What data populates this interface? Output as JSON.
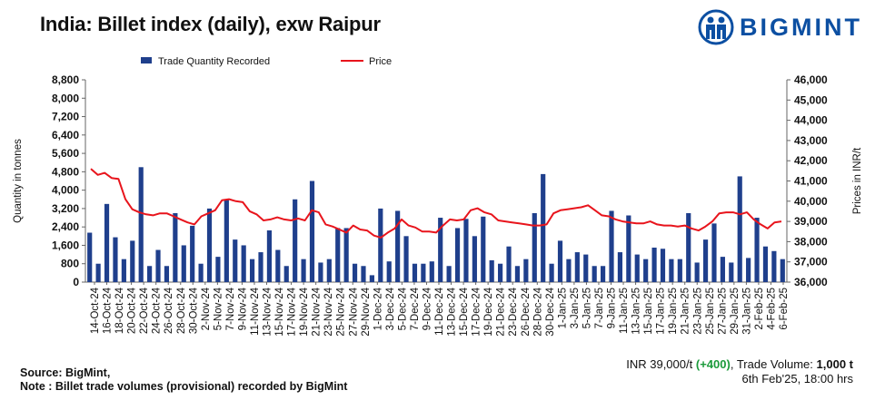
{
  "header": {
    "title": "India: Billet index (daily), exw Raipur",
    "logo_text": "BIGMINT"
  },
  "chart_data": {
    "type": "bar+line",
    "title": "India: Billet index (daily), exw Raipur",
    "ylabel_left": "Quantity in tonnes",
    "ylabel_right": "Prices in INR/t",
    "ylim_left": [
      0,
      8800
    ],
    "ylim_right": [
      36000,
      46000
    ],
    "left_ticks": [
      "0",
      "800",
      "1,600",
      "2,400",
      "3,200",
      "4,000",
      "4,800",
      "5,600",
      "6,400",
      "7,200",
      "8,000",
      "8,800"
    ],
    "right_ticks": [
      "36,000",
      "37,000",
      "38,000",
      "39,000",
      "40,000",
      "41,000",
      "42,000",
      "43,000",
      "44,000",
      "45,000",
      "46,000"
    ],
    "grid": false,
    "legend_position": "top",
    "x_tick_labels": [
      "14-Oct-24",
      "16-Oct-24",
      "18-Oct-24",
      "20-Oct-24",
      "22-Oct-24",
      "24-Oct-24",
      "26-Oct-24",
      "28-Oct-24",
      "30-Oct-24",
      "2-Nov-24",
      "5-Nov-24",
      "7-Nov-24",
      "9-Nov-24",
      "11-Nov-24",
      "13-Nov-24",
      "15-Nov-24",
      "17-Nov-24",
      "19-Nov-24",
      "21-Nov-24",
      "23-Nov-24",
      "25-Nov-24",
      "27-Nov-24",
      "29-Nov-24",
      "1-Dec-24",
      "3-Dec-24",
      "5-Dec-24",
      "7-Dec-24",
      "9-Dec-24",
      "11-Dec-24",
      "13-Dec-24",
      "15-Dec-24",
      "17-Dec-24",
      "19-Dec-24",
      "21-Dec-24",
      "23-Dec-24",
      "26-Dec-24",
      "28-Dec-24",
      "30-Dec-24",
      "1-Jan-25",
      "3-Jan-25",
      "5-Jan-25",
      "7-Jan-25",
      "9-Jan-25",
      "11-Jan-25",
      "13-Jan-25",
      "15-Jan-25",
      "17-Jan-25",
      "19-Jan-25",
      "21-Jan-25",
      "23-Jan-25",
      "25-Jan-25",
      "27-Jan-25",
      "29-Jan-25",
      "31-Jan-25",
      "2-Feb-25",
      "4-Feb-25",
      "6-Feb-25"
    ],
    "series": [
      {
        "name": "Trade Quantity Recorded",
        "kind": "bar",
        "axis": "left",
        "color": "#1f3f8c",
        "values": [
          2150,
          800,
          3400,
          1950,
          1000,
          1800,
          5000,
          700,
          1400,
          700,
          3000,
          1600,
          2450,
          800,
          3200,
          1100,
          3600,
          1850,
          1600,
          1000,
          1300,
          2250,
          1400,
          700,
          3600,
          1000,
          4400,
          850,
          1000,
          2350,
          2350,
          800,
          700,
          300,
          3200,
          900,
          3100,
          2000,
          800,
          800,
          900,
          2800,
          700,
          2350,
          2750,
          2000,
          2850,
          950,
          800,
          1550,
          700,
          1000,
          3000,
          4700,
          800,
          1800,
          1000,
          1300,
          1200,
          700,
          700,
          3100,
          1300,
          2900,
          1200,
          1000,
          1500,
          1450,
          1000,
          1000,
          3000,
          850,
          1850,
          2550,
          1100,
          850,
          4600,
          1050,
          2800,
          1550,
          1350,
          1000
        ]
      },
      {
        "name": "Price",
        "kind": "line",
        "axis": "right",
        "color": "#e8141c",
        "values": [
          41600,
          41300,
          41400,
          41150,
          41100,
          40100,
          39600,
          39450,
          39350,
          39300,
          39400,
          39400,
          39250,
          39100,
          38950,
          38850,
          39250,
          39400,
          39550,
          40050,
          40100,
          40000,
          39950,
          39500,
          39350,
          39050,
          39100,
          39200,
          39100,
          39050,
          39150,
          39050,
          39550,
          39450,
          38850,
          38750,
          38600,
          38450,
          38800,
          38600,
          38550,
          38300,
          38200,
          38450,
          38650,
          39100,
          38800,
          38700,
          38500,
          38500,
          38450,
          38800,
          39100,
          39050,
          39100,
          39550,
          39650,
          39450,
          39350,
          39050,
          39000,
          38950,
          38900,
          38850,
          38800,
          38800,
          38850,
          39400,
          39550,
          39600,
          39650,
          39700,
          39800,
          39550,
          39300,
          39250,
          39100,
          39000,
          38950,
          38900,
          38900,
          39000,
          38850,
          38800,
          38800,
          38750,
          38800,
          38650,
          38550,
          38750,
          39000,
          39400,
          39450,
          39450,
          39350,
          39450,
          39100,
          38850,
          38650,
          38950,
          39000
        ]
      }
    ]
  },
  "footer": {
    "source_line": "Source: BigMint,",
    "note_line": "Note : Billet trade volumes (provisional) recorded by BigMint",
    "price_value": "INR 39,000/t",
    "price_change": "(+400)",
    "separator": ",",
    "volume_label": "Trade Volume:",
    "volume_value": "1,000 t",
    "timestamp": "6th Feb'25, 18:00 hrs"
  }
}
